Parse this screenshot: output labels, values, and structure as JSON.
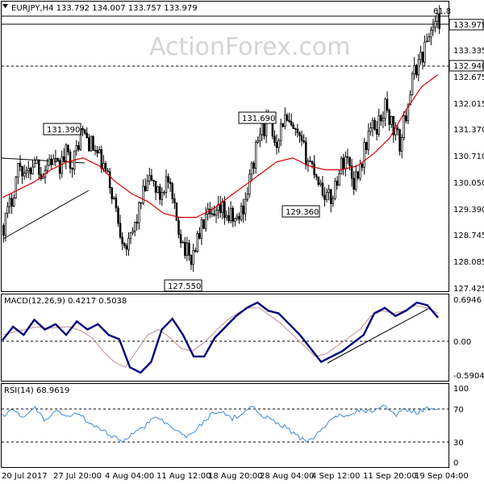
{
  "chart_data": {
    "type": "candlestick",
    "symbol": "EURJPY",
    "timeframe": "H4",
    "open": "133.792",
    "high": "134.007",
    "low": "133.757",
    "close": "133.979",
    "header": "EURJPY,H4  133.792 134.007 133.757 133.979",
    "watermark": "ActionForex.com",
    "ylim": [
      127.2,
      134.4
    ],
    "price_ticks": [
      "133.335",
      "132.675",
      "132.015",
      "131.370",
      "130.710",
      "130.050",
      "129.390",
      "128.745",
      "128.085",
      "127.425"
    ],
    "current_price": "133.979",
    "support_line": "132.940",
    "fib_level_label": "61.8",
    "annotations": [
      {
        "label": "131.390",
        "value": 131.39
      },
      {
        "label": "131.690",
        "value": 131.69
      },
      {
        "label": "129.360",
        "value": 129.36
      },
      {
        "label": "127.550",
        "value": 127.55
      }
    ],
    "x_labels": [
      "20 Jul 2017",
      "27 Jul 20:00",
      "4 Aug 04:00",
      "11 Aug 12:00",
      "18 Aug 20:00",
      "28 Aug 04:00",
      "4 Sep 12:00",
      "11 Sep 20:00",
      "19 Sep 04:00"
    ],
    "moving_average_color": "#dd0000",
    "close_anchor_values": [
      128.8,
      129.4,
      130.4,
      130.0,
      130.5,
      130.1,
      130.5,
      130.2,
      130.6,
      130.4,
      131.2,
      130.9,
      130.6,
      130.2,
      129.6,
      128.7,
      128.2,
      128.9,
      129.6,
      130.0,
      129.5,
      130.0,
      129.1,
      128.4,
      127.9,
      128.5,
      129.0,
      128.9,
      129.2,
      129.0,
      128.9,
      129.4,
      130.3,
      131.2,
      131.4,
      130.9,
      131.5,
      131.2,
      130.9,
      130.5,
      130.2,
      129.7,
      129.4,
      130.1,
      130.6,
      129.9,
      130.4,
      131.2,
      131.3,
      131.8,
      131.3,
      130.8,
      132.0,
      132.8,
      133.2,
      133.8,
      133.98
    ],
    "moving_average_values": [
      129.5,
      129.7,
      129.9,
      130.2,
      130.4,
      130.5,
      130.3,
      129.9,
      129.6,
      129.4,
      129.1,
      129.0,
      129.0,
      129.2,
      129.5,
      129.8,
      130.1,
      130.4,
      130.5,
      130.3,
      130.2,
      130.2,
      130.3,
      130.6,
      131.0,
      131.7,
      132.3,
      132.6
    ],
    "macd": {
      "label": "MACD(12,26,9) 0.4217 0.5038",
      "ticks": [
        "0.6946",
        "0.00",
        "-0.5904"
      ],
      "ylim": [
        -0.72,
        0.82
      ],
      "line_values": [
        0.0,
        0.25,
        0.1,
        0.38,
        0.2,
        0.3,
        0.1,
        0.35,
        0.2,
        0.3,
        0.1,
        0.02,
        -0.5,
        -0.6,
        -0.4,
        0.2,
        0.4,
        0.1,
        -0.3,
        -0.3,
        0.05,
        0.25,
        0.45,
        0.6,
        0.7,
        0.55,
        0.5,
        0.3,
        0.1,
        -0.15,
        -0.4,
        -0.3,
        -0.2,
        -0.05,
        0.1,
        0.5,
        0.6,
        0.45,
        0.55,
        0.7,
        0.65,
        0.42
      ],
      "signal_values": [
        0.1,
        0.15,
        0.2,
        0.25,
        0.22,
        0.24,
        0.25,
        0.18,
        0.05,
        -0.2,
        -0.4,
        -0.5,
        -0.2,
        0.1,
        0.2,
        0.05,
        -0.15,
        -0.2,
        -0.05,
        0.15,
        0.35,
        0.5,
        0.6,
        0.6,
        0.45,
        0.3,
        0.1,
        -0.1,
        -0.3,
        -0.25,
        -0.1,
        0.05,
        0.2,
        0.45,
        0.55,
        0.5,
        0.55,
        0.65,
        0.6,
        0.5
      ]
    },
    "rsi": {
      "label": "RSI(14) 68.9619",
      "ticks": [
        "100",
        "70",
        "30",
        "0"
      ],
      "ylim": [
        0,
        100
      ],
      "values": [
        62,
        70,
        58,
        72,
        55,
        68,
        60,
        66,
        52,
        44,
        38,
        30,
        40,
        48,
        62,
        54,
        42,
        36,
        48,
        62,
        70,
        58,
        66,
        72,
        62,
        55,
        48,
        38,
        28,
        40,
        55,
        62,
        66,
        70,
        66,
        74,
        62,
        70,
        66,
        72,
        69
      ]
    }
  }
}
